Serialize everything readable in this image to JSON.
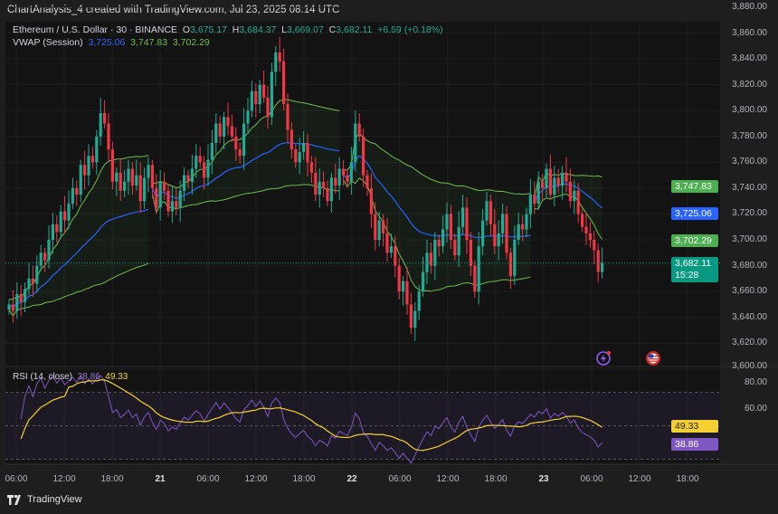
{
  "header": {
    "title": "ChartAnalysis_4 created with TradingView.com, Jul 23, 2025 08:14 UTC"
  },
  "legend": {
    "symbol": "Ethereum / U.S. Dollar · 30 · BINANCE",
    "o_label": "O",
    "open": "3,675.17",
    "h_label": "H",
    "high": "3,684.37",
    "l_label": "L",
    "low": "3,669.07",
    "c_label": "C",
    "close": "3,682.11",
    "change": "+6.59 (+0.18%)",
    "vwap_label": "VWAP (Session)",
    "vwap": "3,725.06",
    "vwap_upper": "3,747.83",
    "vwap_lower": "3,702.29"
  },
  "rsi_legend": {
    "label": "RSI (14, close)",
    "rsi": "38.86",
    "rsi_ma": "49.33"
  },
  "price_axis": [
    "3,880.00",
    "3,860.00",
    "3,840.00",
    "3,820.00",
    "3,800.00",
    "3,780.00",
    "3,760.00",
    "3,740.00",
    "3,720.00",
    "3,700.00",
    "3,680.00",
    "3,660.00",
    "3,640.00",
    "3,620.00",
    "3,600.00"
  ],
  "rsi_axis": [
    "80.00",
    "60.00"
  ],
  "badges": {
    "vwap_upper": "3,747.83",
    "vwap": "3,725.06",
    "vwap_lower": "3,702.29",
    "last_price": "3,682.11",
    "countdown": "15:28",
    "rsi_ma": "49.33",
    "rsi": "38.86"
  },
  "time_axis": [
    "06:00",
    "12:00",
    "18:00",
    "21",
    "06:00",
    "12:00",
    "18:00",
    "22",
    "06:00",
    "12:00",
    "18:00",
    "23",
    "06:00",
    "12:00",
    "18:00"
  ],
  "footer": {
    "brand": "TradingView"
  },
  "icons": [
    "lightning-event-icon",
    "us-flag-icon",
    "tradingview-logo-icon"
  ],
  "colors": {
    "up": "#22ab94",
    "down": "#f23645",
    "vwap": "#2962ff",
    "bands": "#6fbf4a",
    "rsi": "#7e57c2",
    "rsi_ma": "#f5d033",
    "last_price": "#089981"
  },
  "chart_data": {
    "type": "candlestick",
    "interval": "30",
    "ylim": [
      3600,
      3880
    ],
    "rsi_ylim": [
      20,
      80
    ],
    "rsi_levels": [
      70,
      50,
      30
    ],
    "closes": [
      3650,
      3645,
      3658,
      3652,
      3662,
      3670,
      3666,
      3680,
      3690,
      3684,
      3700,
      3712,
      3706,
      3722,
      3715,
      3728,
      3740,
      3735,
      3758,
      3750,
      3765,
      3760,
      3780,
      3798,
      3790,
      3770,
      3745,
      3752,
      3738,
      3745,
      3755,
      3742,
      3750,
      3730,
      3748,
      3758,
      3740,
      3725,
      3745,
      3738,
      3722,
      3730,
      3725,
      3738,
      3750,
      3745,
      3755,
      3765,
      3760,
      3748,
      3762,
      3775,
      3790,
      3780,
      3795,
      3788,
      3780,
      3770,
      3765,
      3790,
      3800,
      3815,
      3805,
      3820,
      3810,
      3795,
      3830,
      3845,
      3838,
      3805,
      3785,
      3770,
      3760,
      3768,
      3775,
      3760,
      3752,
      3735,
      3745,
      3740,
      3730,
      3748,
      3742,
      3755,
      3750,
      3745,
      3760,
      3790,
      3780,
      3750,
      3740,
      3720,
      3700,
      3715,
      3705,
      3690,
      3695,
      3680,
      3660,
      3668,
      3650,
      3632,
      3645,
      3660,
      3675,
      3690,
      3680,
      3700,
      3695,
      3708,
      3720,
      3700,
      3688,
      3710,
      3725,
      3700,
      3680,
      3660,
      3695,
      3715,
      3730,
      3712,
      3695,
      3705,
      3720,
      3690,
      3672,
      3700,
      3712,
      3708,
      3720,
      3735,
      3728,
      3745,
      3740,
      3755,
      3735,
      3748,
      3742,
      3752,
      3745,
      3730,
      3738,
      3720,
      3710,
      3705,
      3700,
      3692,
      3675.17,
      3682.11
    ],
    "session_starts": [
      36,
      84,
      132
    ]
  }
}
